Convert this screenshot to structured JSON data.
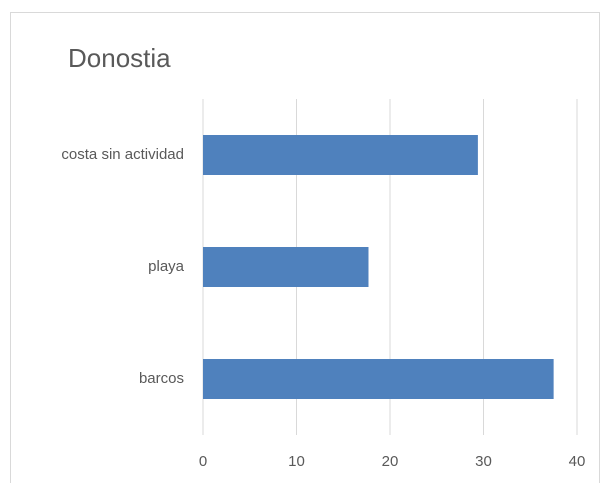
{
  "chart_data": {
    "type": "bar",
    "orientation": "horizontal",
    "title": "Donostia",
    "categories": [
      "barcos",
      "playa",
      "costa sin actividad"
    ],
    "values": [
      37.5,
      17.7,
      29.4
    ],
    "color": "#4f81bd",
    "xlim": [
      0,
      40
    ],
    "xticks": [
      0,
      10,
      20,
      30,
      40
    ],
    "grid": true
  }
}
